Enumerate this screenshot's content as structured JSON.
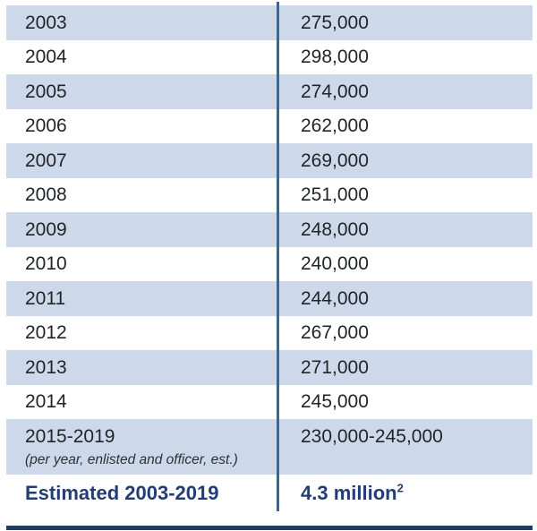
{
  "table": {
    "rows": [
      {
        "year": "2003",
        "value": "275,000"
      },
      {
        "year": "2004",
        "value": "298,000"
      },
      {
        "year": "2005",
        "value": "274,000"
      },
      {
        "year": "2006",
        "value": "262,000"
      },
      {
        "year": "2007",
        "value": "269,000"
      },
      {
        "year": "2008",
        "value": "251,000"
      },
      {
        "year": "2009",
        "value": "248,000"
      },
      {
        "year": "2010",
        "value": "240,000"
      },
      {
        "year": "2011",
        "value": "244,000"
      },
      {
        "year": "2012",
        "value": "267,000"
      },
      {
        "year": "2013",
        "value": "271,000"
      },
      {
        "year": "2014",
        "value": "245,000"
      },
      {
        "year": "2015-2019",
        "note": "(per year, enlisted and officer, est.)",
        "value": "230,000-245,000"
      }
    ],
    "summary": {
      "label": "Estimated 2003-2019",
      "value": "4.3 million",
      "superscript": "2"
    }
  },
  "colors": {
    "stripe": "#cdd9eb",
    "divider": "#3a639f",
    "rule": "#1e3a6b",
    "navy_text": "#223c74",
    "body_text": "#212529"
  }
}
